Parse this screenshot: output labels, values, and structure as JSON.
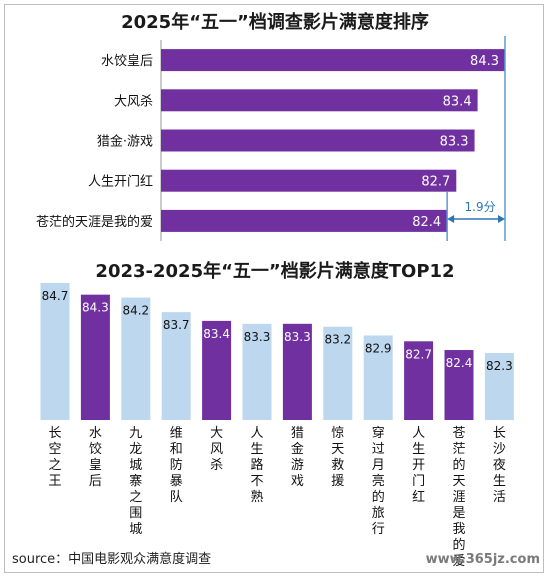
{
  "source": "source：中国电影观众满意度调查",
  "watermark": "www.365jz.com",
  "chart_data": [
    {
      "type": "bar",
      "orientation": "horizontal",
      "title": "2025年“五一”档调查影片满意度排序",
      "categories": [
        "水饺皇后",
        "大风杀",
        "猎金·游戏",
        "人生开门红",
        "苍茫的天涯是我的爱"
      ],
      "values": [
        84.3,
        83.4,
        83.3,
        82.7,
        82.4
      ],
      "bar_color": "#7030A0",
      "annotation": "1.9分"
    },
    {
      "type": "bar",
      "title": "2023-2025年“五一”档影片满意度TOP12",
      "categories": [
        "长空之王",
        "水饺皇后",
        "九龙城寨之围城",
        "维和防暴队",
        "大风杀",
        "人生路不熟",
        "猎金游戏",
        "惊天救援",
        "穿过月亮的旅行",
        "人生开门红",
        "苍茫的天涯是我的爱",
        "长沙夜生活"
      ],
      "values": [
        84.7,
        84.3,
        84.2,
        83.7,
        83.4,
        83.3,
        83.3,
        83.2,
        82.9,
        82.7,
        82.4,
        82.3
      ],
      "highlight": [
        false,
        true,
        false,
        false,
        true,
        false,
        true,
        false,
        false,
        true,
        true,
        false
      ],
      "highlight_color": "#7030A0",
      "base_color": "#BDD7EE"
    }
  ]
}
